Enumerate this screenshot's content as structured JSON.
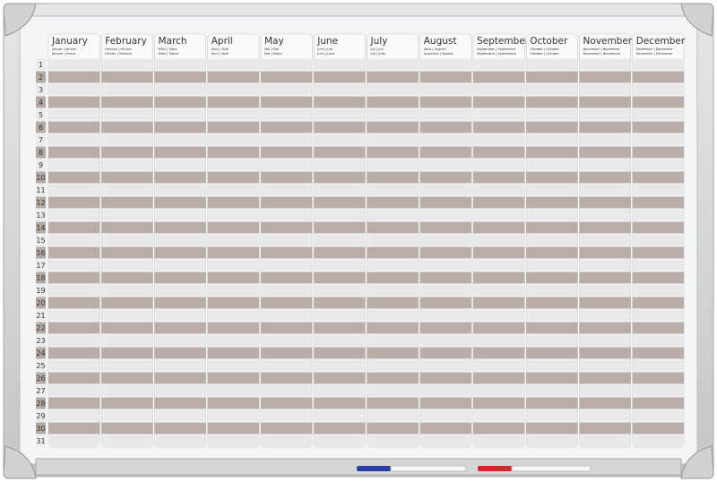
{
  "months": [
    {
      "name": "January",
      "sub": [
        "Januar | Janvier",
        "Janvier | Enero"
      ]
    },
    {
      "name": "February",
      "sub": [
        "Februar | Février",
        "Février | Febrero"
      ]
    },
    {
      "name": "March",
      "sub": [
        "März | Mars",
        "Mars | Marzo"
      ]
    },
    {
      "name": "April",
      "sub": [
        "April | Avril",
        "Avril | Abril"
      ]
    },
    {
      "name": "May",
      "sub": [
        "Mai | Mei",
        "Mai | Mayo"
      ]
    },
    {
      "name": "June",
      "sub": [
        "Juni | Juin",
        "Juin | Junio"
      ]
    },
    {
      "name": "July",
      "sub": [
        "Juli | Juli",
        "Juli | Julio"
      ]
    },
    {
      "name": "August",
      "sub": [
        "Août | August",
        "Augustus | Agosto"
      ]
    },
    {
      "name": "September",
      "sub": [
        "September | Septembre",
        "Septembre | Septiembre"
      ]
    },
    {
      "name": "October",
      "sub": [
        "Oktober | Octobre",
        "Oktober | Octubre"
      ]
    },
    {
      "name": "November",
      "sub": [
        "November | Novembre",
        "November | Noviembre"
      ]
    },
    {
      "name": "December",
      "sub": [
        "Dezember | Décembre",
        "December | Diciembre"
      ]
    }
  ],
  "days": [
    "1",
    "2",
    "3",
    "4",
    "5",
    "6",
    "7",
    "8",
    "9",
    "10",
    "11",
    "12",
    "13",
    "14",
    "15",
    "16",
    "17",
    "18",
    "19",
    "20",
    "21",
    "22",
    "23",
    "24",
    "25",
    "26",
    "27",
    "28",
    "29",
    "30",
    "31"
  ]
}
